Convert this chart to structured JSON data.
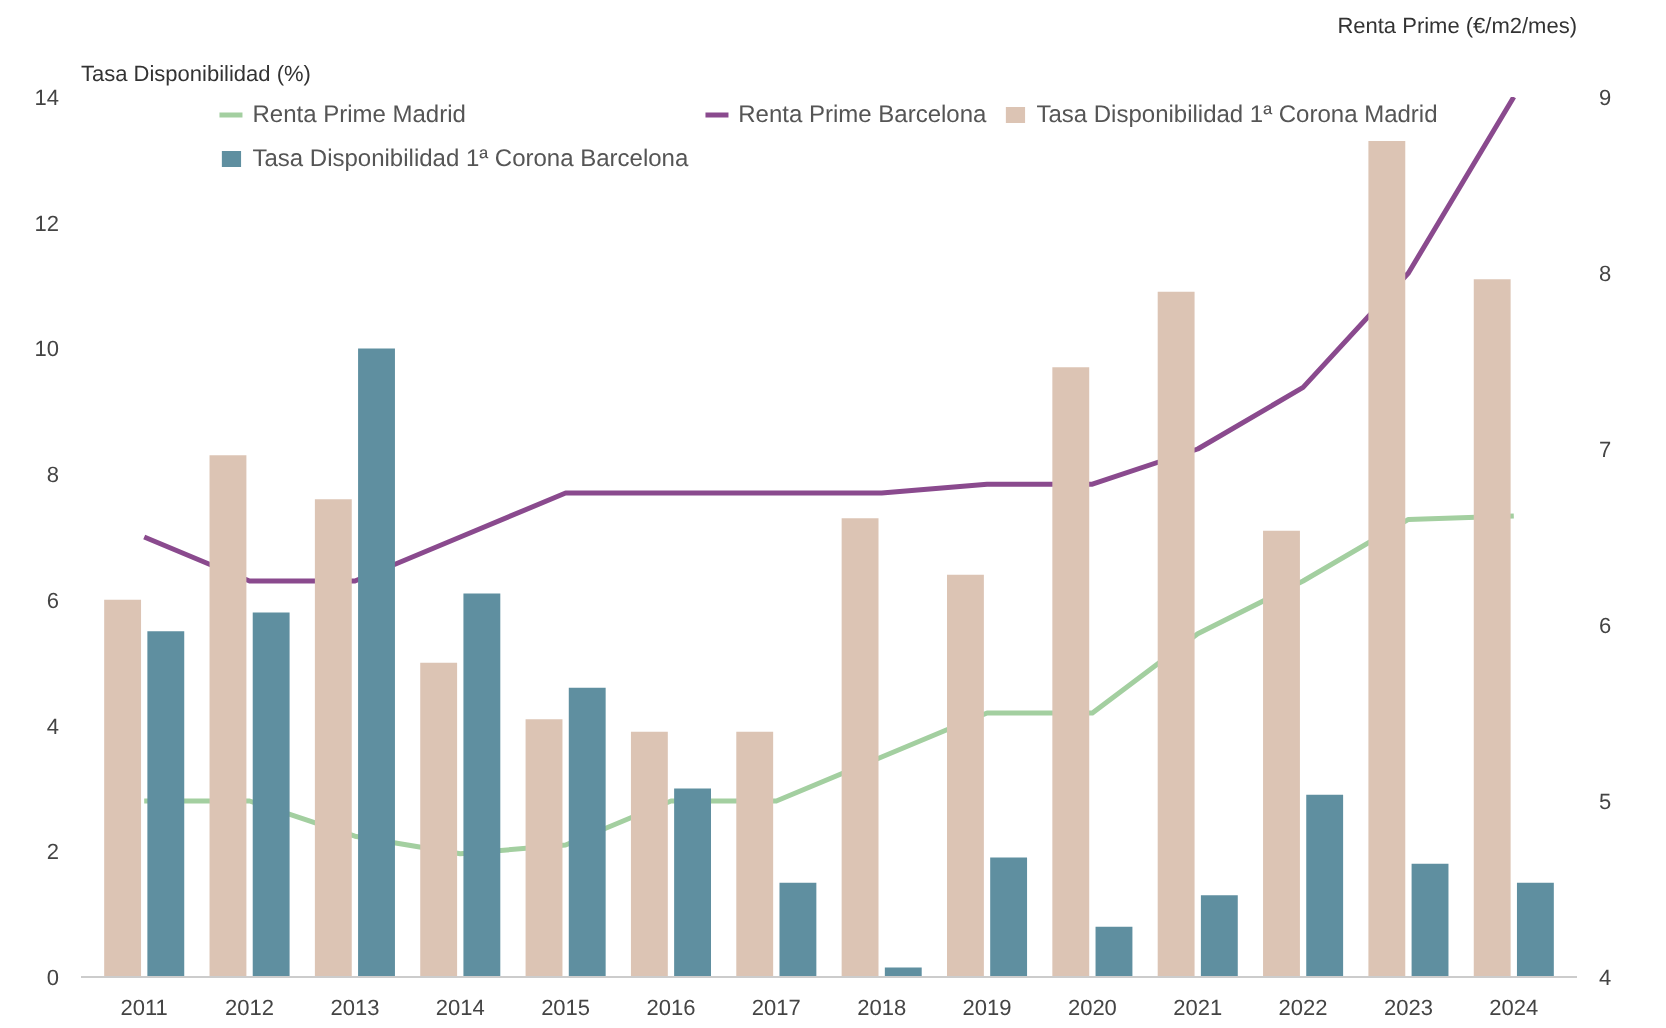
{
  "chart_data": {
    "type": "bar",
    "ylabel": "Tasa Disponibilidad (%)",
    "y2label": "Renta Prime (€/m2/mes)",
    "categories": [
      "2011",
      "2012",
      "2013",
      "2014",
      "2015",
      "2016",
      "2017",
      "2018",
      "2019",
      "2020",
      "2021",
      "2022",
      "2023",
      "2024"
    ],
    "series": [
      {
        "name": "Renta Prime Madrid",
        "type": "line",
        "axis": "y2",
        "color": "#a3cfa0",
        "values": [
          5.0,
          5.0,
          4.8,
          4.7,
          4.75,
          5.0,
          5.0,
          5.25,
          5.5,
          5.5,
          5.95,
          6.25,
          6.6,
          6.62
        ]
      },
      {
        "name": "Renta Prime Barcelona",
        "type": "line",
        "axis": "y2",
        "color": "#8a4a8e",
        "values": [
          6.5,
          6.25,
          6.25,
          6.5,
          6.75,
          6.75,
          6.75,
          6.75,
          6.8,
          6.8,
          7.0,
          7.35,
          8.0,
          9.0
        ]
      },
      {
        "name": "Tasa Disponibilidad 1ª Corona Madrid",
        "color": "#dcc4b4",
        "values": [
          6.0,
          8.3,
          7.6,
          5.0,
          4.1,
          3.9,
          3.9,
          7.3,
          6.4,
          9.7,
          10.9,
          7.1,
          13.3,
          11.1
        ]
      },
      {
        "name": "Tasa Disponibilidad 1ª Corona Barcelona",
        "color": "#5f8fa0",
        "values": [
          5.5,
          5.8,
          10.0,
          6.1,
          4.6,
          3.0,
          1.5,
          0.15,
          1.9,
          0.8,
          1.3,
          2.9,
          1.8,
          1.5
        ]
      }
    ],
    "ylim": [
      0,
      14
    ],
    "yticks": [
      0,
      2,
      4,
      6,
      8,
      10,
      12,
      14
    ],
    "y2lim": [
      4,
      9
    ],
    "y2ticks": [
      4,
      5,
      6,
      7,
      8,
      9
    ],
    "grid": false,
    "legend": "top",
    "line_style": "solid"
  }
}
